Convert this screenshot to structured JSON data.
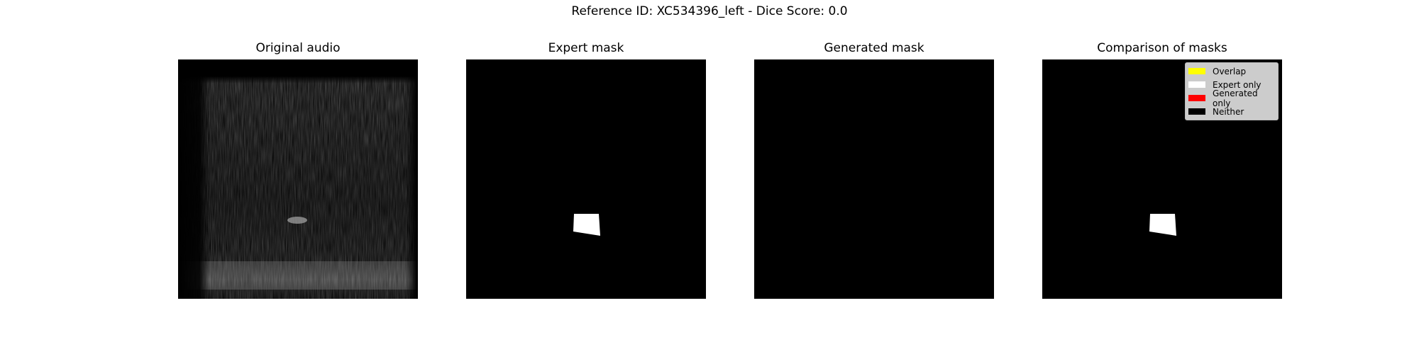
{
  "figure": {
    "title": "Reference ID: XC534396_left - Dice Score: 0.0"
  },
  "panels": [
    {
      "title": "Original audio"
    },
    {
      "title": "Expert mask"
    },
    {
      "title": "Generated mask"
    },
    {
      "title": "Comparison of masks"
    }
  ],
  "legend": {
    "items": [
      {
        "label": "Overlap",
        "color": "#ffff00"
      },
      {
        "label": "Expert only",
        "color": "#ffffff"
      },
      {
        "label": "Generated only",
        "color": "#ff0000"
      },
      {
        "label": "Neither",
        "color": "#000000"
      }
    ]
  },
  "colors": {
    "mask_background": "#000000",
    "expert_region": "#ffffff",
    "legend_background": "#cccccc"
  }
}
